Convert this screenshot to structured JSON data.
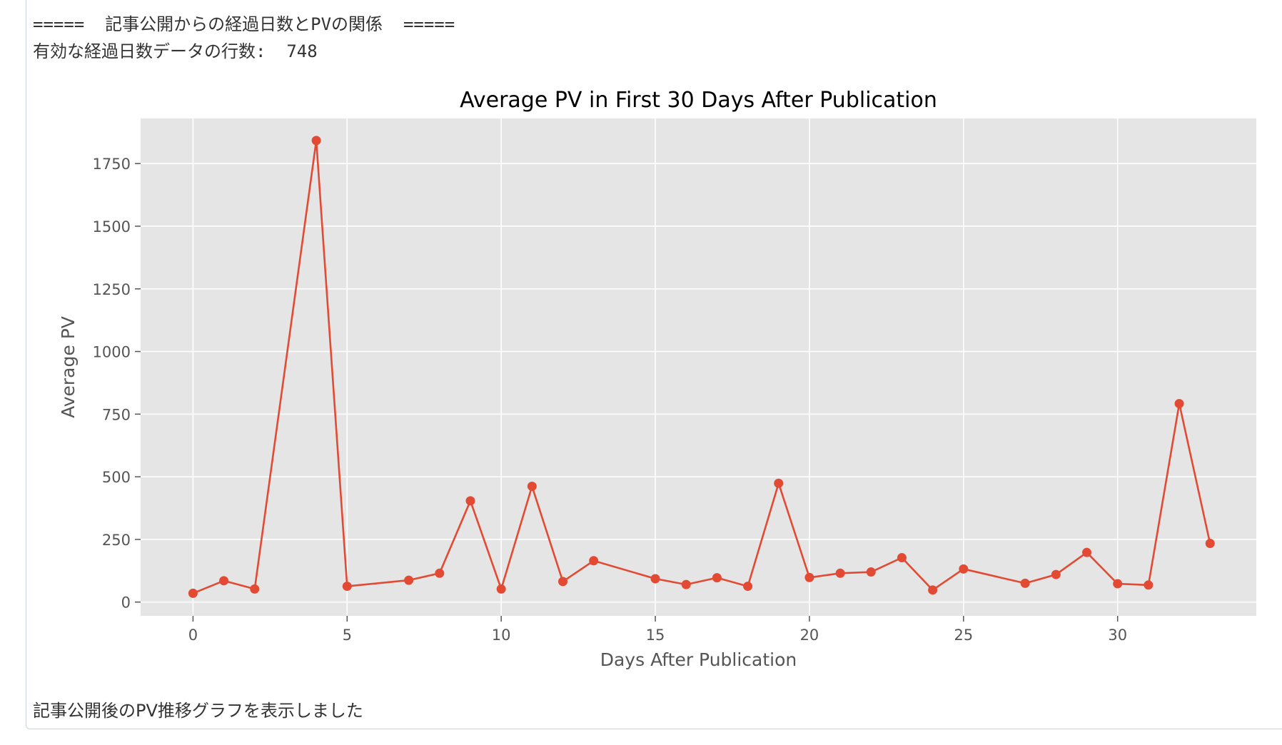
{
  "log": {
    "header": "=====  記事公開からの経過日数とPVの関係  =====",
    "row_count_line": "有効な経過日数データの行数:  748",
    "footer": "記事公開後のPV推移グラフを表示しました"
  },
  "colors": {
    "line": "#e24a33",
    "plot_bg": "#e5e5e5",
    "grid": "#ffffff"
  },
  "chart_data": {
    "type": "line",
    "title": "Average PV in First 30 Days After Publication",
    "xlabel": "Days After Publication",
    "ylabel": "Average PV",
    "xlim": [
      -1.7,
      34.5
    ],
    "ylim": [
      -55,
      1930
    ],
    "xticks": [
      0,
      5,
      10,
      15,
      20,
      25,
      30
    ],
    "yticks": [
      0,
      250,
      500,
      750,
      1000,
      1250,
      1500,
      1750
    ],
    "grid": true,
    "series": [
      {
        "marker": "circle",
        "x": [
          0,
          1,
          2,
          4,
          5,
          7,
          8,
          9,
          10,
          11,
          12,
          13,
          15,
          16,
          17,
          18,
          19,
          20,
          21,
          22,
          23,
          24,
          25,
          27,
          28,
          29,
          30,
          31,
          32,
          33
        ],
        "y": [
          35,
          85,
          52,
          1842,
          63,
          87,
          115,
          404,
          52,
          462,
          82,
          165,
          93,
          70,
          97,
          63,
          474,
          98,
          115,
          120,
          177,
          48,
          132,
          75,
          110,
          198,
          73,
          68,
          792,
          234
        ]
      }
    ]
  }
}
